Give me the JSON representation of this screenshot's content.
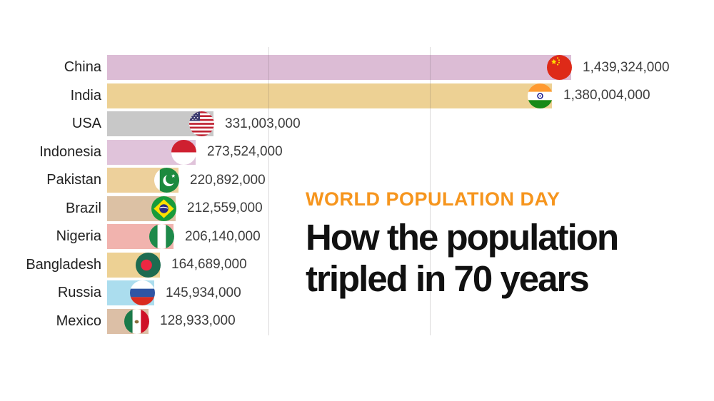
{
  "page": {
    "background": "#ffffff"
  },
  "title_block": {
    "kicker": "WORLD POPULATION DAY",
    "kicker_color": "#f6951d",
    "headline_line1": "How the population",
    "headline_line2": "tripled in 70 years",
    "headline_color": "#111111"
  },
  "chart_data": {
    "type": "bar",
    "orientation": "horizontal",
    "unit": "people",
    "xlim": [
      0,
      1439324000
    ],
    "gridlines": {
      "visible": true,
      "values": [
        500000000,
        1000000000
      ]
    },
    "legend": "none",
    "categories": [
      "China",
      "India",
      "USA",
      "Indonesia",
      "Pakistan",
      "Brazil",
      "Nigeria",
      "Bangladesh",
      "Russia",
      "Mexico"
    ],
    "values": [
      1439324000,
      1380004000,
      331003000,
      273524000,
      220892000,
      212559000,
      206140000,
      164689000,
      145934000,
      128933000
    ],
    "rows": [
      {
        "country": "China",
        "value": 1439324000,
        "value_label": "1,439,324,000",
        "bar_color": "#dcbcd5",
        "flag": "china-flag-icon"
      },
      {
        "country": "India",
        "value": 1380004000,
        "value_label": "1,380,004,000",
        "bar_color": "#edd194",
        "flag": "india-flag-icon"
      },
      {
        "country": "USA",
        "value": 331003000,
        "value_label": "331,003,000",
        "bar_color": "#c8c8c8",
        "flag": "usa-flag-icon"
      },
      {
        "country": "Indonesia",
        "value": 273524000,
        "value_label": "273,524,000",
        "bar_color": "#e0c3da",
        "flag": "indonesia-flag-icon"
      },
      {
        "country": "Pakistan",
        "value": 220892000,
        "value_label": "220,892,000",
        "bar_color": "#edd09b",
        "flag": "pakistan-flag-icon"
      },
      {
        "country": "Brazil",
        "value": 212559000,
        "value_label": "212,559,000",
        "bar_color": "#dcc1a4",
        "flag": "brazil-flag-icon"
      },
      {
        "country": "Nigeria",
        "value": 206140000,
        "value_label": "206,140,000",
        "bar_color": "#f1b3ae",
        "flag": "nigeria-flag-icon"
      },
      {
        "country": "Bangladesh",
        "value": 164689000,
        "value_label": "164,689,000",
        "bar_color": "#edd194",
        "flag": "bangladesh-flag-icon"
      },
      {
        "country": "Russia",
        "value": 145934000,
        "value_label": "145,934,000",
        "bar_color": "#abddee",
        "flag": "russia-flag-icon"
      },
      {
        "country": "Mexico",
        "value": 128933000,
        "value_label": "128,933,000",
        "bar_color": "#dcbfa6",
        "flag": "mexico-flag-icon"
      }
    ]
  }
}
